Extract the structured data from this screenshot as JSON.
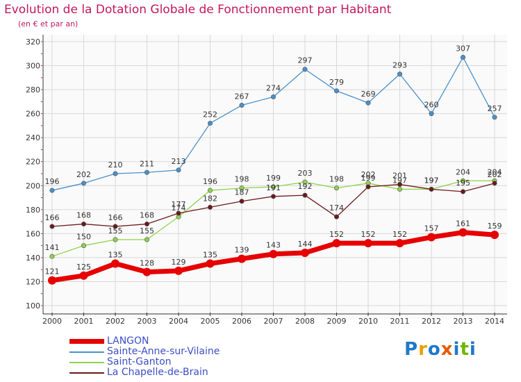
{
  "chart_data": {
    "type": "line",
    "title": "Evolution de la Dotation Globale de Fonctionnement par Habitant",
    "subtitle": "(en € et par an)",
    "xlabel": "",
    "ylabel": "",
    "categories": [
      "2000",
      "2001",
      "2002",
      "2003",
      "2004",
      "2005",
      "2006",
      "2007",
      "2008",
      "2009",
      "2010",
      "2011",
      "2012",
      "2013",
      "2014"
    ],
    "ylim": [
      100,
      320
    ],
    "yticks": [
      100,
      120,
      140,
      160,
      180,
      200,
      220,
      240,
      260,
      280,
      300,
      320
    ],
    "grid": true,
    "legend": "bottom-left",
    "series": [
      {
        "name": "Sainte-Anne-sur-Vilaine",
        "color": "#4a90c8",
        "values": [
          196,
          202,
          210,
          211,
          213,
          252,
          267,
          274,
          297,
          279,
          269,
          293,
          260,
          307,
          257
        ]
      },
      {
        "name": "Saint-Ganton",
        "color": "#8fd24a",
        "values": [
          141,
          150,
          155,
          155,
          174,
          196,
          198,
          199,
          203,
          198,
          202,
          197,
          197,
          204,
          204
        ]
      },
      {
        "name": "La Chapelle-de-Brain",
        "color": "#6b1a1a",
        "values": [
          166,
          168,
          166,
          168,
          177,
          182,
          187,
          191,
          192,
          174,
          199,
          201,
          197,
          195,
          202
        ]
      },
      {
        "name": "LANGON",
        "color": "#e60000",
        "values": [
          121,
          125,
          135,
          128,
          129,
          135,
          139,
          143,
          144,
          152,
          152,
          152,
          157,
          161,
          159
        ]
      }
    ],
    "data_labels": {
      "Sainte-Anne-sur-Vilaine": [
        "196",
        "202",
        "210",
        "211",
        "213",
        "252",
        "267",
        "274",
        "297",
        "279",
        "269",
        "293",
        "260",
        "307",
        "257"
      ],
      "Saint-Ganton": [
        "141",
        "150",
        "155",
        "155",
        "174",
        "196",
        "198",
        "199",
        "203",
        "198",
        "202",
        "197",
        "197",
        "204",
        "204"
      ],
      "La Chapelle-de-Brain": [
        "166",
        "168",
        "166",
        "168",
        "177",
        "182",
        "187",
        "191",
        "192",
        "174",
        "199",
        "201",
        "197",
        "195",
        "202"
      ],
      "LANGON": [
        "121",
        "125",
        "135",
        "128",
        "129",
        "135",
        "139",
        "143",
        "144",
        "152",
        "152",
        "152",
        "157",
        "161",
        "159"
      ]
    }
  },
  "legend": {
    "items": [
      {
        "label": "LANGON",
        "color": "#e60000"
      },
      {
        "label": "Sainte-Anne-sur-Vilaine",
        "color": "#4a90c8"
      },
      {
        "label": "Saint-Ganton",
        "color": "#8fd24a"
      },
      {
        "label": "La Chapelle-de-Brain",
        "color": "#6b1a1a"
      }
    ]
  },
  "logo": {
    "text": "Proxiti",
    "letters": [
      {
        "char": "P",
        "color": "#1f78c8"
      },
      {
        "char": "r",
        "color": "#e8a000"
      },
      {
        "char": "o",
        "color": "#1f78c8"
      },
      {
        "char": "x",
        "color": "#e85a00"
      },
      {
        "char": "i",
        "color": "#1f78c8"
      },
      {
        "char": "t",
        "color": "#6cb800"
      },
      {
        "char": "i",
        "color": "#1f78c8"
      }
    ]
  }
}
